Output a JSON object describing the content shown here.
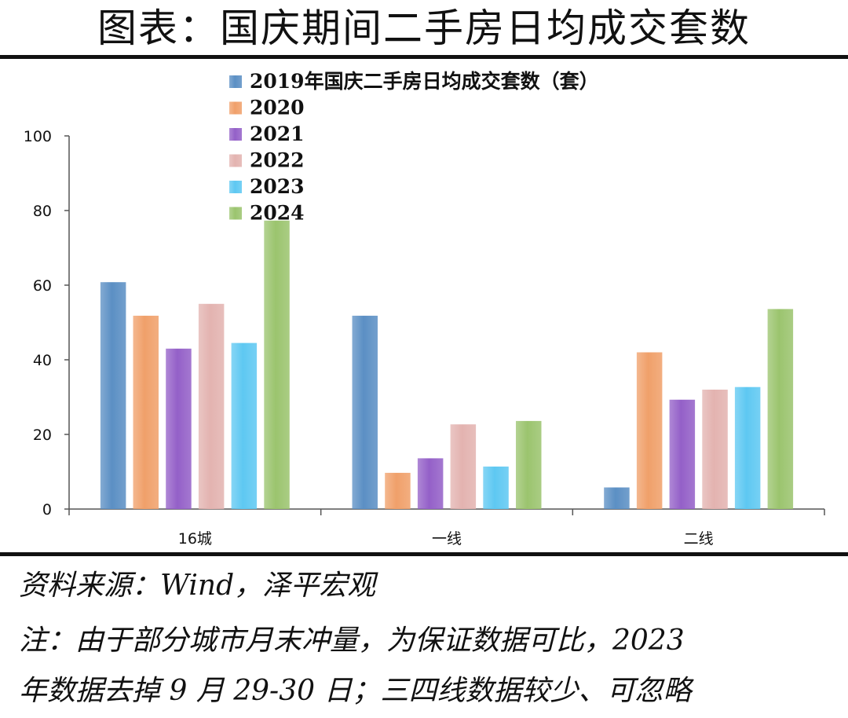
{
  "header": {
    "title": "图表：国庆期间二手房日均成交套数"
  },
  "footer": {
    "source": "资料来源：Wind，泽平宏观",
    "note_line1": "注：由于部分城市月末冲量，为保证数据可比，2023",
    "note_line2": "年数据去掉 9 月 29-30 日；三四线数据较少、可忽略"
  },
  "chart_data": {
    "type": "bar",
    "title": "",
    "xlabel": "",
    "ylabel": "",
    "categories": [
      "16城",
      "一线",
      "二线"
    ],
    "ylim": [
      0,
      100
    ],
    "yticks": [
      "0",
      "20",
      "40",
      "60",
      "80",
      "100"
    ],
    "grid": false,
    "legend_position": "top-center",
    "series": [
      {
        "name": "2019年国庆二手房日均成交套数（套）",
        "color": "#5b8fc4",
        "values": [
          60.8,
          51.8,
          5.8
        ]
      },
      {
        "name": "2020",
        "color": "#f0a06a",
        "values": [
          51.8,
          9.7,
          42.0
        ]
      },
      {
        "name": "2021",
        "color": "#9460c8",
        "values": [
          43.0,
          13.6,
          29.3
        ]
      },
      {
        "name": "2022",
        "color": "#e3b3b0",
        "values": [
          55.0,
          22.7,
          32.0
        ]
      },
      {
        "name": "2023",
        "color": "#5ec8f2",
        "values": [
          44.5,
          11.4,
          32.7
        ]
      },
      {
        "name": "2024",
        "color": "#9bc46e",
        "values": [
          77.3,
          23.6,
          53.6
        ]
      }
    ]
  }
}
